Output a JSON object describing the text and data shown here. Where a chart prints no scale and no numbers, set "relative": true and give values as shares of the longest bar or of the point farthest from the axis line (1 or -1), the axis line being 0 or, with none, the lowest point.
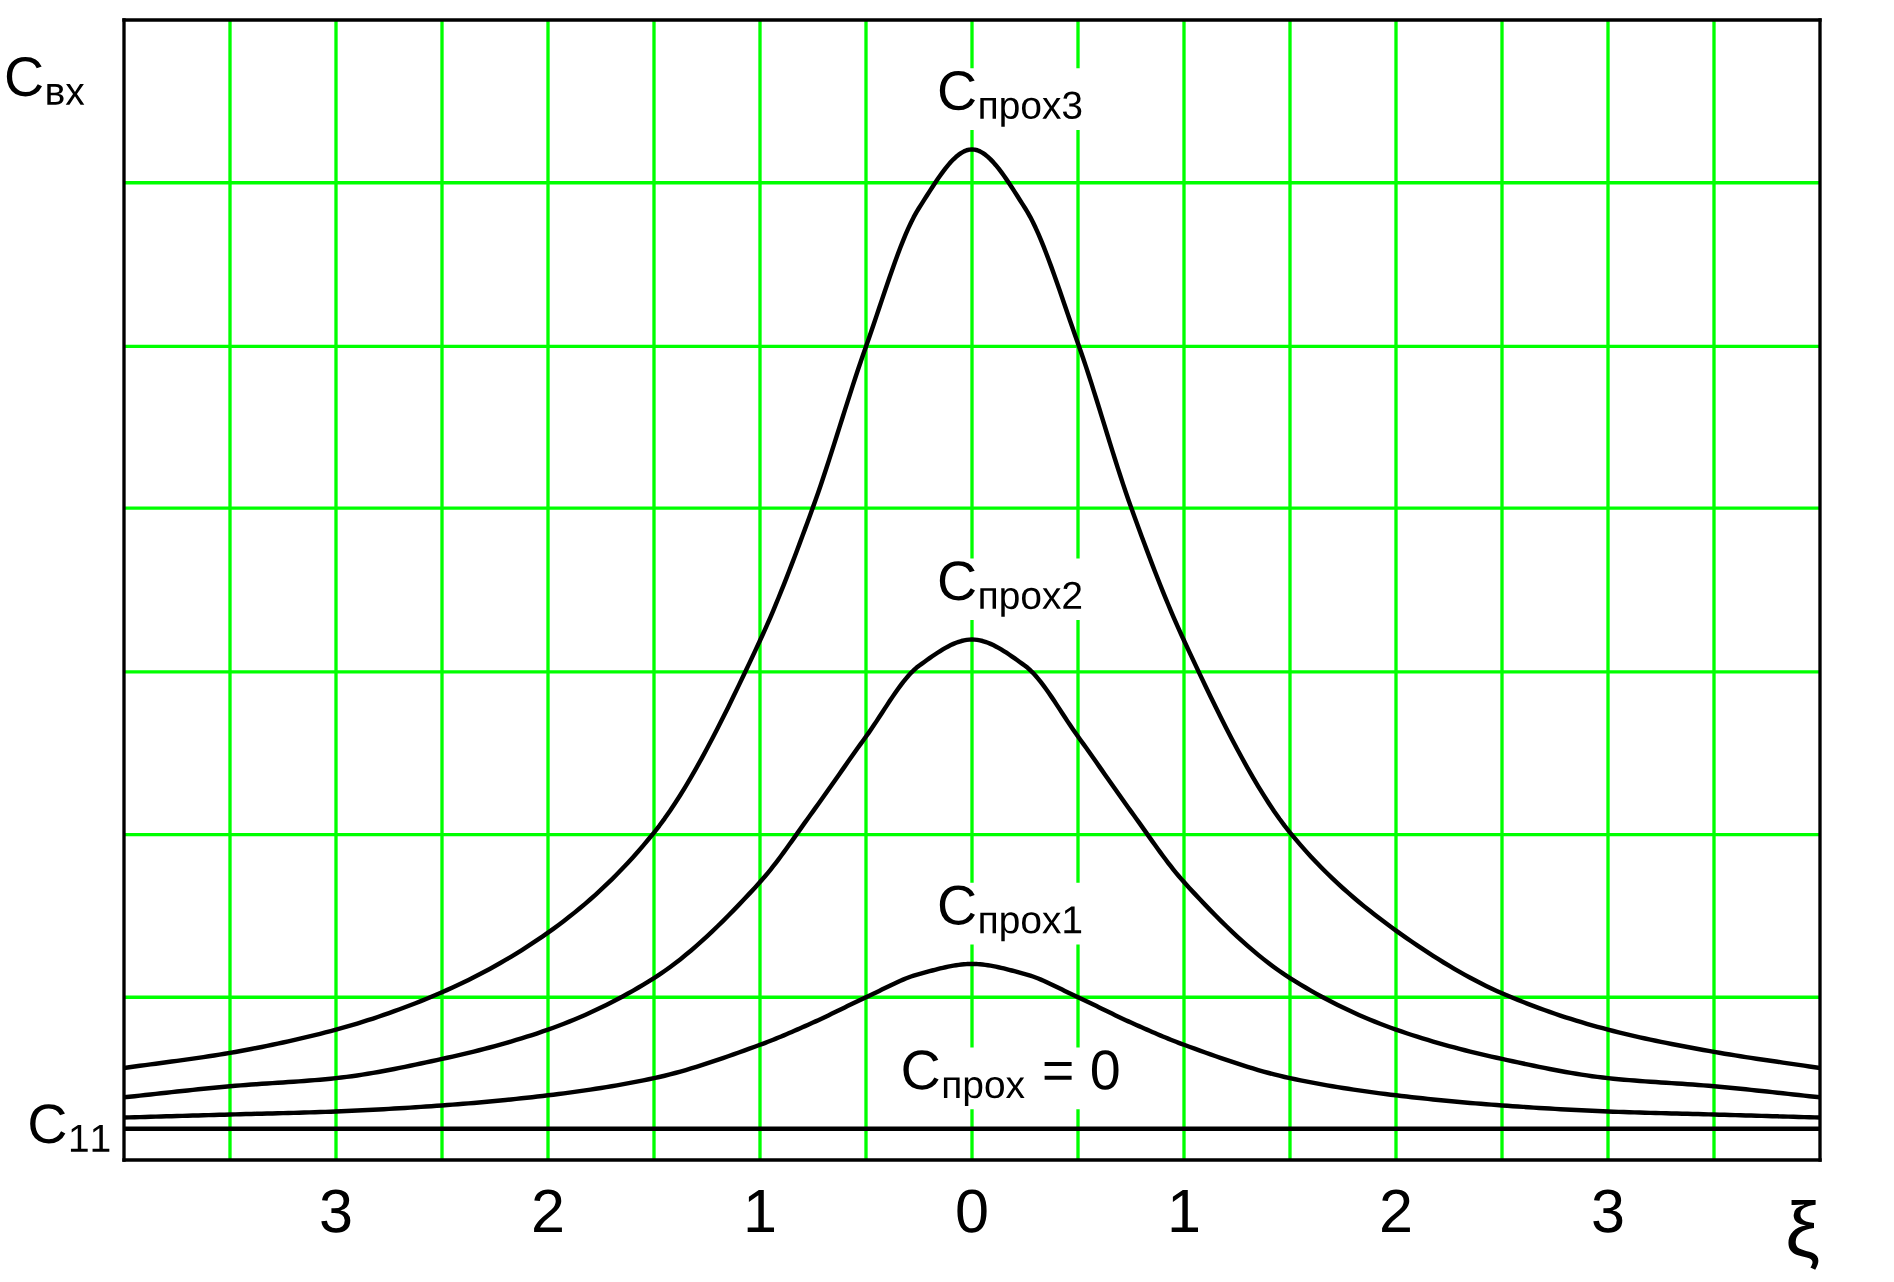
{
  "chart_data": {
    "type": "line",
    "relative": true,
    "xlabel": "ξ",
    "ylabel": "C$_{вх}$",
    "x": [
      -4,
      -3.5,
      -3,
      -2.5,
      -2,
      -1.5,
      -1,
      -0.75,
      -0.5,
      -0.25,
      0,
      0.25,
      0.5,
      0.75,
      1,
      1.5,
      2,
      2.5,
      3,
      3.5,
      4
    ],
    "series": [
      {
        "name": "C$_{прох3}$",
        "color": "#000000",
        "values": [
          0.091,
          0.106,
          0.129,
          0.166,
          0.225,
          0.324,
          0.514,
          0.646,
          0.805,
          0.942,
          1.0,
          0.942,
          0.808,
          0.646,
          0.514,
          0.324,
          0.227,
          0.165,
          0.129,
          0.107,
          0.091
        ]
      },
      {
        "name": "C$_{прох2}$",
        "color": "#000000",
        "values": [
          0.062,
          0.073,
          0.081,
          0.1,
          0.129,
          0.18,
          0.275,
          0.345,
          0.419,
          0.489,
          0.515,
          0.489,
          0.419,
          0.345,
          0.275,
          0.18,
          0.129,
          0.1,
          0.081,
          0.073,
          0.062
        ]
      },
      {
        "name": "C$_{прох1}$",
        "color": "#000000",
        "values": [
          0.042,
          0.045,
          0.048,
          0.054,
          0.064,
          0.081,
          0.114,
          0.136,
          0.161,
          0.184,
          0.194,
          0.184,
          0.161,
          0.136,
          0.114,
          0.081,
          0.064,
          0.054,
          0.048,
          0.045,
          0.042
        ]
      },
      {
        "name": "C$_{прох}$ = 0",
        "color": "#000000",
        "values": [
          0.031,
          0.031,
          0.031,
          0.031,
          0.031,
          0.031,
          0.031,
          0.031,
          0.031,
          0.031,
          0.031,
          0.031,
          0.031,
          0.031,
          0.031,
          0.031,
          0.031,
          0.031,
          0.031,
          0.031,
          0.031
        ]
      }
    ],
    "xlim": [
      -4,
      4
    ],
    "xticks": [
      {
        "value": -3.5,
        "label": null
      },
      {
        "value": -3,
        "label": "3"
      },
      {
        "value": -2.5,
        "label": null
      },
      {
        "value": -2,
        "label": "2"
      },
      {
        "value": -1.5,
        "label": null
      },
      {
        "value": -1,
        "label": "1"
      },
      {
        "value": -0.5,
        "label": null
      },
      0,
      {
        "value": 0.5,
        "label": null
      },
      1,
      {
        "value": 1.5,
        "label": null
      },
      2,
      {
        "value": 2.5,
        "label": null
      },
      3,
      {
        "value": 3.5,
        "label": null
      }
    ],
    "grid": "x",
    "ref_lines": [
      {
        "axis": "y",
        "value": 0.161,
        "color": "#00ff00"
      },
      {
        "axis": "y",
        "value": 0.322,
        "color": "#00ff00"
      },
      {
        "axis": "y",
        "value": 0.483,
        "color": "#00ff00"
      },
      {
        "axis": "y",
        "value": 0.645,
        "color": "#00ff00"
      },
      {
        "axis": "y",
        "value": 0.805,
        "color": "#00ff00"
      },
      {
        "axis": "y",
        "value": 0.967,
        "color": "#00ff00"
      }
    ],
    "annotations": [
      {
        "text": "C$_{11}$",
        "x": -4,
        "y": 0.031
      }
    ],
    "line_style": "solid",
    "marker": "none"
  }
}
